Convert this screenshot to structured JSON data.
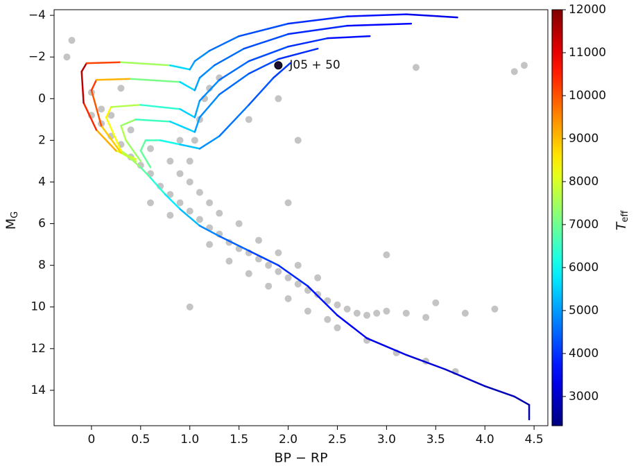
{
  "chart_data": {
    "type": "scatter",
    "xlabel": "BP − RP",
    "ylabel": {
      "main": "M",
      "sub": "G"
    },
    "xlim": [
      -0.38,
      4.64
    ],
    "ylim": [
      15.7,
      -4.27
    ],
    "xticks": [
      0,
      0.5,
      {
        "value": 1,
        "label": "1.0"
      },
      1.5,
      {
        "value": 2,
        "label": "2.0"
      },
      2.5,
      {
        "value": 3,
        "label": "3.0"
      },
      3.5,
      {
        "value": 4,
        "label": "4.0"
      },
      4.5
    ],
    "yticks": [
      {
        "value": -4,
        "label": "−4"
      },
      {
        "value": -2,
        "label": "−2"
      },
      0,
      2,
      4,
      6,
      8,
      10,
      12,
      14
    ],
    "point_color": "#3a3a3a",
    "points": {
      "x": [
        0.0,
        0.1,
        0.2,
        0.3,
        0.4,
        0.5,
        0.6,
        0.7,
        0.8,
        0.9,
        1.0,
        1.1,
        1.2,
        1.3,
        1.4,
        1.5,
        1.6,
        1.7,
        1.8,
        1.9,
        2.0,
        2.1,
        2.2,
        2.3,
        2.4,
        2.5,
        2.6,
        2.7,
        2.8,
        2.9,
        3.0,
        3.2,
        3.4,
        2.5,
        2.8,
        3.1,
        3.4,
        3.7,
        0.1,
        0.0,
        0.2,
        0.4,
        0.6,
        0.8,
        0.9,
        1.0,
        1.05,
        1.1,
        1.15,
        1.2,
        1.3,
        1.0,
        1.1,
        1.2,
        1.3,
        1.5,
        1.7,
        1.9,
        2.1,
        2.3,
        1.2,
        1.4,
        1.6,
        1.8,
        2.0,
        2.2,
        2.4,
        0.6,
        0.8,
        3.5,
        3.8,
        4.1,
        0.9,
        1.6,
        1.9,
        -0.2,
        -0.25,
        0.3,
        4.3,
        4.4,
        3.3,
        2.1,
        1.0,
        3.0,
        2.0
      ],
      "y": [
        0.8,
        1.2,
        1.8,
        2.2,
        2.8,
        3.2,
        3.6,
        4.2,
        4.6,
        5.0,
        5.4,
        5.8,
        6.2,
        6.5,
        6.9,
        7.2,
        7.4,
        7.7,
        8.0,
        8.3,
        8.6,
        8.9,
        9.2,
        9.4,
        9.7,
        9.9,
        10.1,
        10.3,
        10.4,
        10.3,
        10.2,
        10.3,
        10.5,
        11.0,
        11.6,
        12.2,
        12.6,
        13.1,
        0.5,
        -0.3,
        0.8,
        1.5,
        2.4,
        3.0,
        3.6,
        3.0,
        2.0,
        1.0,
        0.0,
        -0.5,
        -1.0,
        4.0,
        4.5,
        5.0,
        5.5,
        6.0,
        6.8,
        7.4,
        8.0,
        8.6,
        7.0,
        7.8,
        8.4,
        9.0,
        9.6,
        10.2,
        10.6,
        5.0,
        5.6,
        9.8,
        10.3,
        10.1,
        2.0,
        1.0,
        0.0,
        -2.8,
        -2.0,
        -0.5,
        -1.3,
        -1.6,
        -1.5,
        2.0,
        10.0,
        7.5,
        5.0
      ]
    },
    "tracks": [
      {
        "x": [
          0.38,
          0.5,
          0.6,
          0.75,
          0.9,
          1.1,
          1.3,
          1.6,
          1.9,
          2.2,
          2.5,
          2.8,
          3.2,
          3.6,
          4.0,
          4.3,
          4.45,
          4.45
        ],
        "y": [
          2.8,
          3.3,
          3.8,
          4.6,
          5.3,
          6.1,
          6.6,
          7.3,
          8.0,
          9.0,
          10.4,
          11.5,
          12.3,
          13.0,
          13.8,
          14.3,
          14.7,
          15.4
        ],
        "teff": [
          7800,
          7000,
          6600,
          6000,
          5600,
          5000,
          4600,
          4300,
          4000,
          3800,
          3600,
          3400,
          3300,
          3100,
          2900,
          2800,
          2700,
          2600
        ]
      },
      {
        "x": [
          0.45,
          0.25,
          0.05,
          -0.08,
          -0.1,
          -0.05,
          0.3,
          0.8,
          1.0,
          1.05,
          1.2,
          1.5,
          2.0,
          2.6,
          3.2,
          3.72
        ],
        "y": [
          2.9,
          2.5,
          1.5,
          0.2,
          -1.3,
          -1.7,
          -1.75,
          -1.6,
          -1.4,
          -1.8,
          -2.3,
          -3.0,
          -3.6,
          -3.95,
          -4.05,
          -3.9
        ],
        "teff": [
          7600,
          8500,
          9800,
          11000,
          11800,
          11300,
          9000,
          6000,
          5200,
          5000,
          4700,
          4400,
          4100,
          3800,
          3500,
          3200
        ]
      },
      {
        "x": [
          0.45,
          0.3,
          0.1,
          0.0,
          0.05,
          0.4,
          0.9,
          1.05,
          1.1,
          1.25,
          1.55,
          2.0,
          2.6,
          3.25
        ],
        "y": [
          3.0,
          2.6,
          1.3,
          -0.4,
          -0.9,
          -0.95,
          -0.8,
          -0.4,
          -1.0,
          -1.6,
          -2.4,
          -3.1,
          -3.5,
          -3.6
        ],
        "teff": [
          7500,
          8200,
          9500,
          10500,
          10000,
          8200,
          6000,
          5200,
          5000,
          4700,
          4400,
          4100,
          3700,
          3400
        ]
      },
      {
        "x": [
          0.45,
          0.3,
          0.15,
          0.2,
          0.5,
          0.9,
          1.05,
          1.1,
          1.3,
          1.6,
          2.0,
          2.4,
          2.83
        ],
        "y": [
          3.0,
          2.5,
          0.9,
          0.4,
          0.3,
          0.5,
          0.9,
          0.1,
          -0.9,
          -1.8,
          -2.5,
          -2.9,
          -3.0
        ],
        "teff": [
          7400,
          8000,
          8600,
          8300,
          7000,
          5800,
          5200,
          5000,
          4700,
          4400,
          4100,
          3800,
          3500
        ]
      },
      {
        "x": [
          0.5,
          0.35,
          0.3,
          0.45,
          0.8,
          1.05,
          1.1,
          1.3,
          1.6,
          1.9,
          2.3
        ],
        "y": [
          3.0,
          2.0,
          1.3,
          1.0,
          1.1,
          1.6,
          0.9,
          -0.2,
          -1.2,
          -1.9,
          -2.4
        ],
        "teff": [
          7200,
          7600,
          7700,
          7100,
          6000,
          5100,
          5000,
          4700,
          4400,
          4100,
          3800
        ]
      },
      {
        "x": [
          0.6,
          0.5,
          0.55,
          0.7,
          0.9,
          1.1,
          1.3,
          1.6,
          1.85,
          2.02
        ],
        "y": [
          3.3,
          2.5,
          2.0,
          2.0,
          2.2,
          2.4,
          1.8,
          0.3,
          -1.0,
          -1.7
        ],
        "teff": [
          6800,
          7000,
          6800,
          6400,
          5800,
          5000,
          4800,
          4500,
          4200,
          4000
        ]
      }
    ],
    "colorbar": {
      "label": {
        "main": "T",
        "sub": "eff"
      },
      "lim": [
        2320,
        12000
      ],
      "ticks": [
        3000,
        4000,
        5000,
        6000,
        7000,
        8000,
        9000,
        10000,
        11000,
        12000
      ],
      "colormap": "jet"
    },
    "annotations": [
      {
        "text": "J05 + 50",
        "x": 1.9,
        "y": -1.6,
        "color": "#1c0b30"
      }
    ]
  }
}
